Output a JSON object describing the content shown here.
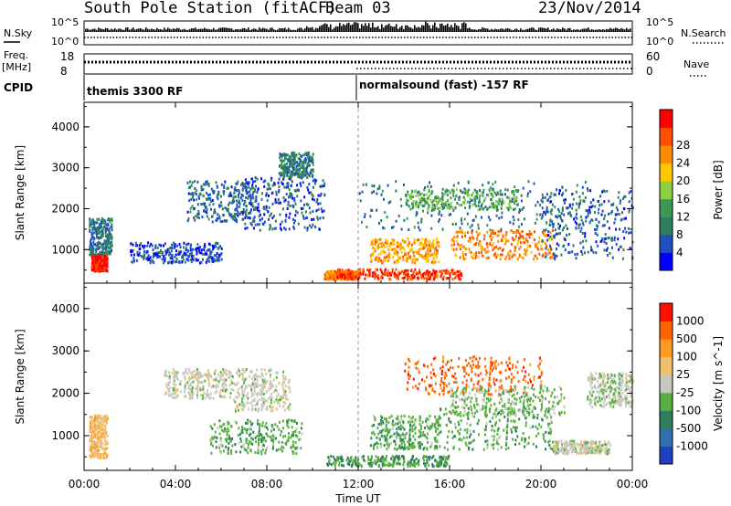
{
  "header": {
    "title": "South Pole Station (fitACF)",
    "beam": "Beam 03",
    "date": "23/Nov/2014"
  },
  "strips": {
    "nsky_label": "N.Sky",
    "nsky_ticks": [
      "10^5",
      "10^0"
    ],
    "nsearch_label": "N.Search",
    "nsearch_ticks": [
      "10^5",
      "10^0"
    ],
    "freq_label_1": "Freq.",
    "freq_label_2": "[MHz]",
    "freq_ticks": [
      "18",
      "8"
    ],
    "nave_label": "Nave",
    "nave_ticks": [
      "60",
      "0"
    ],
    "cpid_label": "CPID",
    "cpid_segments": [
      "themis 3300 RF",
      "normalsound (fast) -157 RF"
    ]
  },
  "chart_data": [
    {
      "type": "heatmap",
      "name": "power-panel",
      "ylabel": "Slant Range [km]",
      "xlabel": "Time UT",
      "ylim": [
        180,
        4600
      ],
      "yticks": [
        "1000",
        "2000",
        "3000",
        "4000"
      ],
      "xticks": [
        "00:00",
        "04:00",
        "08:00",
        "12:00",
        "16:00",
        "20:00",
        "00:00"
      ],
      "colorbar_label": "Power [dB]",
      "colorbar_ticks": [
        "4",
        "8",
        "12",
        "16",
        "20",
        "24",
        "28"
      ],
      "colorbar_colors": [
        "#0000ff",
        "#2050c0",
        "#2e7d5e",
        "#3a9a55",
        "#8cd040",
        "#ffc800",
        "#ff8c00",
        "#ff5000",
        "#ff0000"
      ],
      "colorbar_range": [
        0,
        32
      ],
      "background": "#ffffff",
      "blobs": [
        {
          "t": [
            0.3,
            1.0
          ],
          "r": [
            500,
            900
          ],
          "level": 30
        },
        {
          "t": [
            0.2,
            1.2
          ],
          "r": [
            900,
            1800
          ],
          "level": 8
        },
        {
          "t": [
            2.0,
            6.0
          ],
          "r": [
            700,
            1200
          ],
          "level": 5
        },
        {
          "t": [
            4.5,
            7.5
          ],
          "r": [
            1700,
            2700
          ],
          "level": 7
        },
        {
          "t": [
            7.0,
            10.5
          ],
          "r": [
            1500,
            2800
          ],
          "level": 6
        },
        {
          "t": [
            8.5,
            10.0
          ],
          "r": [
            2800,
            3400
          ],
          "level": 9
        },
        {
          "t": [
            10.5,
            12.0
          ],
          "r": [
            300,
            500
          ],
          "level": 24
        },
        {
          "t": [
            11.0,
            16.5
          ],
          "r": [
            300,
            550
          ],
          "level": 28
        },
        {
          "t": [
            12.5,
            15.5
          ],
          "r": [
            700,
            1300
          ],
          "level": 22
        },
        {
          "t": [
            16.0,
            20.5
          ],
          "r": [
            800,
            1500
          ],
          "level": 24
        },
        {
          "t": [
            12.0,
            22.0
          ],
          "r": [
            1500,
            2700
          ],
          "level": 8
        },
        {
          "t": [
            14.0,
            19.0
          ],
          "r": [
            2000,
            2500
          ],
          "level": 13
        },
        {
          "t": [
            20.0,
            24.0
          ],
          "r": [
            800,
            2500
          ],
          "level": 6
        }
      ]
    },
    {
      "type": "heatmap",
      "name": "velocity-panel",
      "ylabel": "Slant Range [km]",
      "xlabel": "Time UT",
      "ylim": [
        180,
        4600
      ],
      "yticks": [
        "1000",
        "2000",
        "3000",
        "4000"
      ],
      "xticks": [
        "00:00",
        "04:00",
        "08:00",
        "12:00",
        "16:00",
        "20:00",
        "00:00"
      ],
      "colorbar_label": "Velocity [m s^-1]",
      "colorbar_ticks": [
        "1000",
        "500",
        "100",
        "25",
        "-25",
        "-100",
        "-500",
        "-1000"
      ],
      "colorbar_colors": [
        "#2040c0",
        "#3070b0",
        "#2e7d5e",
        "#58b040",
        "#c8c8c0",
        "#f0c070",
        "#ff9c20",
        "#ff6400",
        "#ff1000"
      ],
      "colorbar_range": [
        -1200,
        1200
      ],
      "background": "#ffffff",
      "blobs": [
        {
          "t": [
            0.2,
            1.0
          ],
          "r": [
            500,
            1500
          ],
          "level": 300
        },
        {
          "t": [
            3.5,
            6.5
          ],
          "r": [
            1900,
            2600
          ],
          "level": 0
        },
        {
          "t": [
            6.5,
            9.0
          ],
          "r": [
            1600,
            2600
          ],
          "level": 0
        },
        {
          "t": [
            5.5,
            9.5
          ],
          "r": [
            600,
            1400
          ],
          "level": -300
        },
        {
          "t": [
            10.5,
            16.0
          ],
          "r": [
            300,
            550
          ],
          "level": -400
        },
        {
          "t": [
            12.5,
            15.5
          ],
          "r": [
            700,
            1500
          ],
          "level": -300
        },
        {
          "t": [
            15.5,
            20.5
          ],
          "r": [
            700,
            1700
          ],
          "level": -300
        },
        {
          "t": [
            14.0,
            20.0
          ],
          "r": [
            2000,
            2900
          ],
          "level": 800
        },
        {
          "t": [
            16.0,
            21.0
          ],
          "r": [
            1500,
            2200
          ],
          "level": -200
        },
        {
          "t": [
            20.5,
            23.0
          ],
          "r": [
            600,
            900
          ],
          "level": 0
        },
        {
          "t": [
            22.0,
            24.0
          ],
          "r": [
            1700,
            2500
          ],
          "level": -50
        }
      ]
    }
  ]
}
